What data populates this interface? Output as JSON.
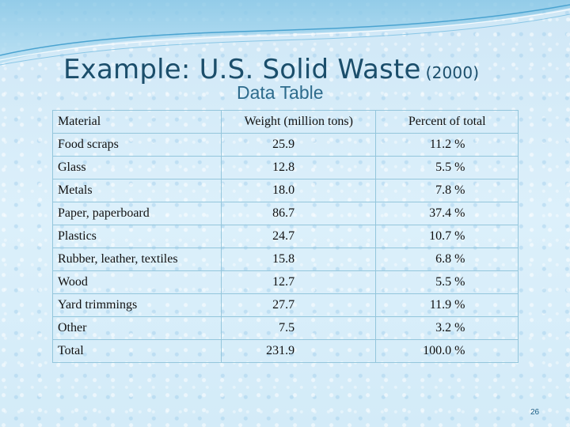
{
  "slide": {
    "title_main": "Example: U.S. Solid Waste",
    "title_year": "(2000)",
    "subtitle": "Data Table",
    "page_number": "26"
  },
  "table": {
    "headers": [
      "Material",
      "Weight (million tons)",
      "Percent of total"
    ],
    "rows": [
      {
        "material": "Food scraps",
        "weight": "25.9",
        "percent": "11.2 %"
      },
      {
        "material": "Glass",
        "weight": "12.8",
        "percent": "5.5 %"
      },
      {
        "material": "Metals",
        "weight": "18.0",
        "percent": "7.8 %"
      },
      {
        "material": "Paper, paperboard",
        "weight": "86.7",
        "percent": "37.4 %"
      },
      {
        "material": "Plastics",
        "weight": "24.7",
        "percent": "10.7 %"
      },
      {
        "material": "Rubber, leather, textiles",
        "weight": "15.8",
        "percent": "6.8 %"
      },
      {
        "material": "Wood",
        "weight": "12.7",
        "percent": "5.5 %"
      },
      {
        "material": "Yard trimmings",
        "weight": "27.7",
        "percent": "11.9 %"
      },
      {
        "material": "Other",
        "weight": "7.5",
        "percent": "3.2 %"
      },
      {
        "material": "Total",
        "weight": "231.9",
        "percent": "100.0 %"
      }
    ]
  },
  "colors": {
    "background": "#d6ecf8",
    "title": "#1b4e6b",
    "subtitle": "#2d6b8c",
    "table_border": "#94c6dc"
  }
}
